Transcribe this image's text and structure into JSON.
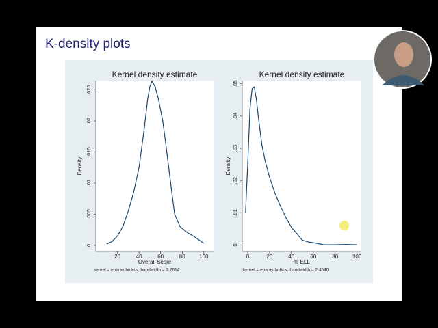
{
  "slide_title": "K-density plots",
  "chart_data": [
    {
      "type": "line",
      "title": "Kernel density estimate",
      "xlabel": "Overall Score",
      "ylabel": "Density",
      "note": "kernel = epanechnikov, bandwidth = 3.2614",
      "color": "#1a476f",
      "grid": false,
      "x": [
        10,
        15,
        20,
        25,
        30,
        35,
        40,
        45,
        48,
        50,
        52,
        55,
        58,
        62,
        65,
        70,
        73,
        78,
        85,
        92,
        100
      ],
      "values": [
        0.0002,
        0.0006,
        0.0015,
        0.003,
        0.0055,
        0.0085,
        0.0125,
        0.019,
        0.0235,
        0.0255,
        0.0264,
        0.0255,
        0.0235,
        0.02,
        0.016,
        0.009,
        0.005,
        0.003,
        0.002,
        0.0013,
        0.0003
      ],
      "xlim": [
        0,
        109
      ],
      "xticks": [
        20,
        40,
        60,
        80,
        100
      ],
      "ylim": [
        -0.001,
        0.0265
      ],
      "yticks": [
        0,
        {
          "value": 0.005,
          "label": ".005"
        },
        {
          "value": 0.01,
          "label": ".01"
        },
        {
          "value": 0.015,
          "label": ".015"
        },
        {
          "value": 0.02,
          "label": ".02"
        },
        {
          "value": 0.025,
          "label": ".025"
        }
      ]
    },
    {
      "type": "line",
      "title": "Kernel density estimate",
      "xlabel": "% ELL",
      "ylabel": "Density",
      "note": "kernel = epanechnikov, bandwidth = 2.4540",
      "color": "#1a476f",
      "grid": false,
      "x": [
        -2,
        0,
        2,
        4,
        6,
        8,
        10,
        13,
        16,
        20,
        25,
        30,
        35,
        40,
        45,
        50,
        55,
        62,
        70,
        80,
        90,
        100
      ],
      "values": [
        0.01,
        0.025,
        0.042,
        0.0485,
        0.049,
        0.045,
        0.039,
        0.031,
        0.026,
        0.021,
        0.016,
        0.012,
        0.0085,
        0.0055,
        0.0035,
        0.0015,
        0.001,
        0.0006,
        0.0001,
        0.0001,
        0.0002,
        0.0001
      ],
      "xlim": [
        -5,
        104
      ],
      "xticks": [
        0,
        20,
        40,
        60,
        80,
        100
      ],
      "ylim": [
        -0.002,
        0.051
      ],
      "yticks": [
        0,
        {
          "value": 0.01,
          "label": ".01"
        },
        {
          "value": 0.02,
          "label": ".02"
        },
        {
          "value": 0.03,
          "label": ".03"
        },
        {
          "value": 0.04,
          "label": ".04"
        },
        {
          "value": 0.05,
          "label": ".05"
        }
      ]
    }
  ]
}
